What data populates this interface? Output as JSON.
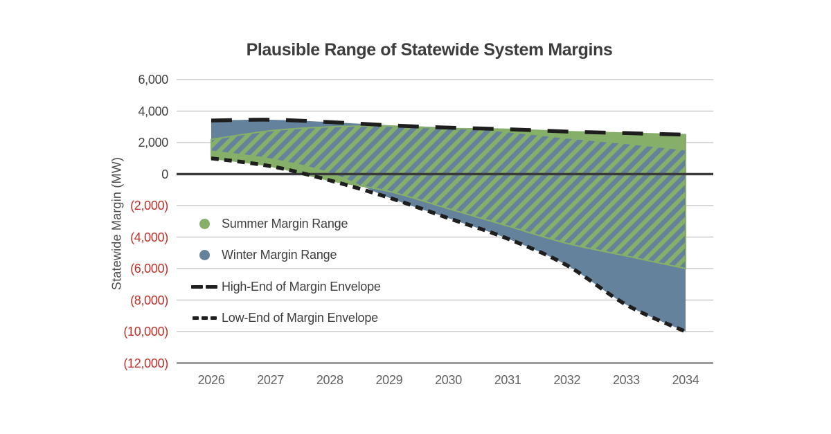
{
  "page": {
    "background": "#ffffff"
  },
  "chart_data": {
    "type": "area",
    "title": "Plausible Range of Statewide System Margins",
    "y_axis_title": "Statewide Margin (MW)",
    "x_ticks": [
      "2026",
      "2027",
      "2028",
      "2029",
      "2030",
      "2031",
      "2032",
      "2033",
      "2034"
    ],
    "y_ticks": [
      {
        "label": "6,000",
        "value": 6000
      },
      {
        "label": "4,000",
        "value": 4000
      },
      {
        "label": "2,000",
        "value": 2000
      },
      {
        "label": "0",
        "value": 0
      },
      {
        "label": "(2,000)",
        "value": -2000
      },
      {
        "label": "(4,000)",
        "value": -4000
      },
      {
        "label": "(6,000)",
        "value": -6000
      },
      {
        "label": "(8,000)",
        "value": -8000
      },
      {
        "label": "(10,000)",
        "value": -10000
      },
      {
        "label": "(12,000)",
        "value": -12000
      }
    ],
    "ylim": [
      -12000,
      6000
    ],
    "xlim": [
      2026,
      2034
    ],
    "grid": "horizontal",
    "legend_position": "inside-left",
    "series": [
      {
        "name": "Summer Margin Range",
        "type": "band",
        "fill": "hatched-green",
        "top": [
          2200,
          2750,
          3000,
          3050,
          2900,
          2850,
          2700,
          2600,
          2500
        ],
        "bottom": [
          1000,
          500,
          -400,
          -1100,
          -2200,
          -3300,
          -4400,
          -5200,
          -6000
        ]
      },
      {
        "name": "Winter Margin Range",
        "type": "band",
        "fill": "solid-blue",
        "top": [
          3400,
          3450,
          3300,
          3100,
          2950,
          2650,
          2250,
          1900,
          1500
        ],
        "bottom": [
          1500,
          1000,
          100,
          -1500,
          -2800,
          -4100,
          -5800,
          -8300,
          -10000
        ]
      },
      {
        "name": "High-End of Margin Envelope",
        "type": "line",
        "style": "long-dash",
        "values": [
          3400,
          3450,
          3300,
          3100,
          2950,
          2850,
          2700,
          2600,
          2500
        ]
      },
      {
        "name": "Low-End of Margin Envelope",
        "type": "line",
        "style": "short-dash",
        "values": [
          1000,
          500,
          -400,
          -1500,
          -2800,
          -4100,
          -5800,
          -8300,
          -10000
        ]
      }
    ],
    "legend": [
      {
        "label": "Summer Margin Range",
        "marker": "green-circle"
      },
      {
        "label": "Winter Margin Range",
        "marker": "blue-circle"
      },
      {
        "label": "High-End of Margin Envelope",
        "marker": "long-dash"
      },
      {
        "label": "Low-End of Margin Envelope",
        "marker": "short-dash"
      }
    ],
    "colors": {
      "summer_green": "#86af6a",
      "winter_blue": "#64829b",
      "envelope_black": "#1e1e1e",
      "negative_tick_red": "#bf2e28",
      "gridline_gray": "#cccccc",
      "zero_line": "#3a3a3a",
      "axis_bottom_gray": "#9b9b9b",
      "text_dark": "#3d3d3d"
    }
  }
}
